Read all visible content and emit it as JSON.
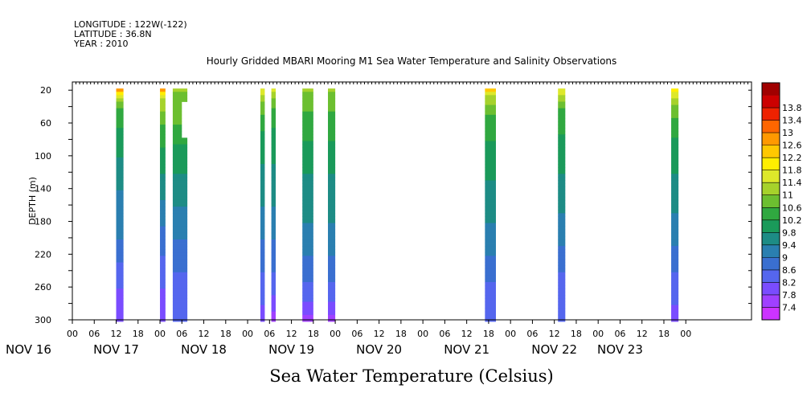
{
  "header": {
    "longitude": "LONGITUDE : 122W(-122)",
    "latitude": "LATITUDE : 36.8N",
    "year": "YEAR : 2010"
  },
  "chart_data": {
    "type": "heatmap",
    "title": "Hourly Gridded MBARI Mooring M1 Sea Water Temperature and Salinity Observations",
    "subtitle": "Sea Water Temperature (Celsius)",
    "ylabel": "DEPTH (m)",
    "xlabel": "",
    "x_unit": "hours since NOV 15 00:00",
    "xlim": [
      0,
      186
    ],
    "ylim": [
      300,
      10
    ],
    "y_ticks": [
      20,
      60,
      100,
      140,
      180,
      220,
      260,
      300
    ],
    "x_tick_labels": [
      "06",
      "12",
      "18",
      "00",
      "06",
      "12",
      "18",
      "00",
      "06",
      "12",
      "18",
      "00",
      "06",
      "12",
      "18",
      "00",
      "06",
      "12",
      "18",
      "00",
      "06",
      "12",
      "18",
      "00",
      "06",
      "12",
      "18",
      "00",
      "06",
      "12",
      "18",
      "00"
    ],
    "x_tick_hours": [
      30,
      36,
      42,
      48,
      54,
      60,
      66,
      72,
      78,
      84,
      90,
      96,
      102,
      108,
      114,
      120,
      126,
      132,
      138,
      144,
      150,
      156,
      162,
      168,
      174,
      180,
      186,
      192,
      198,
      204,
      210,
      216
    ],
    "day_labels": [
      "NOV 16",
      "NOV 17",
      "NOV 18",
      "NOV 19",
      "NOV 20",
      "NOV 21",
      "NOV 22",
      "NOV 23"
    ],
    "day_label_hours": [
      36,
      60,
      84,
      108,
      132,
      156,
      180,
      198
    ],
    "colorbar": {
      "levels": [
        7.4,
        7.8,
        8.2,
        8.6,
        9,
        9.4,
        9.8,
        10.2,
        10.6,
        11,
        11.4,
        11.8,
        12.2,
        12.6,
        13,
        13.4,
        13.8
      ],
      "colors": [
        "#cc33ff",
        "#a040ff",
        "#7a4cff",
        "#5566ee",
        "#3a6fd0",
        "#2a7fb0",
        "#1d8c85",
        "#1a9a5a",
        "#30a840",
        "#6cbf30",
        "#a6d22b",
        "#dde82a",
        "#ffee00",
        "#ffc800",
        "#ff9900",
        "#ff6600",
        "#ee2200",
        "#cc0000",
        "#a00000"
      ]
    },
    "columns": [
      {
        "x_start": 36,
        "x_end": 38,
        "profile": [
          [
            20,
            12.8
          ],
          [
            26,
            11.8
          ],
          [
            40,
            10.6
          ],
          [
            80,
            10.0
          ],
          [
            140,
            9.4
          ],
          [
            200,
            9.0
          ],
          [
            260,
            8.2
          ],
          [
            300,
            7.8
          ]
        ]
      },
      {
        "x_start": 48,
        "x_end": 49.5,
        "profile": [
          [
            20,
            12.6
          ],
          [
            30,
            11.4
          ],
          [
            60,
            10.6
          ],
          [
            120,
            9.8
          ],
          [
            200,
            8.8
          ],
          [
            260,
            8.2
          ],
          [
            300,
            7.8
          ]
        ]
      },
      {
        "x_start": 51.5,
        "x_end": 55.5,
        "profile": [
          [
            20,
            11.0
          ],
          [
            60,
            10.6
          ],
          [
            100,
            10.0
          ],
          [
            160,
            9.4
          ],
          [
            220,
            8.8
          ],
          [
            270,
            8.3
          ],
          [
            300,
            8.2
          ]
        ],
        "gaps": [
          [
            36,
            78
          ]
        ],
        "gap_x_start": 54
      },
      {
        "x_start": 75.5,
        "x_end": 76.7,
        "profile": [
          [
            20,
            11.6
          ],
          [
            40,
            10.8
          ],
          [
            80,
            10.0
          ],
          [
            140,
            9.6
          ],
          [
            200,
            9.0
          ],
          [
            260,
            8.4
          ],
          [
            300,
            8.0
          ]
        ]
      },
      {
        "x_start": 78.5,
        "x_end": 79.7,
        "profile": [
          [
            20,
            11.4
          ],
          [
            40,
            10.6
          ],
          [
            80,
            10.0
          ],
          [
            140,
            9.6
          ],
          [
            200,
            9.0
          ],
          [
            260,
            8.4
          ],
          [
            300,
            7.6
          ]
        ]
      },
      {
        "x_start": 87,
        "x_end": 90,
        "profile": [
          [
            20,
            11.0
          ],
          [
            60,
            10.4
          ],
          [
            120,
            9.8
          ],
          [
            180,
            9.4
          ],
          [
            240,
            8.8
          ],
          [
            290,
            8.0
          ],
          [
            300,
            7.6
          ]
        ]
      },
      {
        "x_start": 94,
        "x_end": 96,
        "profile": [
          [
            20,
            11.0
          ],
          [
            60,
            10.4
          ],
          [
            120,
            9.8
          ],
          [
            180,
            9.4
          ],
          [
            240,
            8.8
          ],
          [
            290,
            8.0
          ],
          [
            300,
            7.6
          ]
        ]
      },
      {
        "x_start": 137,
        "x_end": 140,
        "profile": [
          [
            20,
            12.4
          ],
          [
            26,
            11.4
          ],
          [
            50,
            10.6
          ],
          [
            100,
            10.0
          ],
          [
            160,
            9.6
          ],
          [
            220,
            9.0
          ],
          [
            270,
            8.4
          ],
          [
            300,
            8.2
          ]
        ]
      },
      {
        "x_start": 157,
        "x_end": 159,
        "profile": [
          [
            20,
            11.6
          ],
          [
            40,
            10.6
          ],
          [
            90,
            10.0
          ],
          [
            150,
            9.6
          ],
          [
            210,
            9.0
          ],
          [
            260,
            8.4
          ],
          [
            300,
            8.2
          ]
        ]
      },
      {
        "x_start": 188,
        "x_end": 190,
        "profile": [
          [
            20,
            11.8
          ],
          [
            40,
            10.8
          ],
          [
            90,
            10.0
          ],
          [
            150,
            9.6
          ],
          [
            210,
            9.0
          ],
          [
            260,
            8.4
          ],
          [
            300,
            8.0
          ]
        ]
      }
    ]
  }
}
